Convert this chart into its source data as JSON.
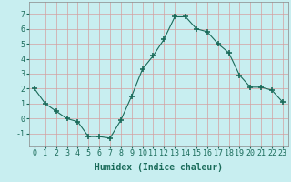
{
  "x": [
    0,
    1,
    2,
    3,
    4,
    5,
    6,
    7,
    8,
    9,
    10,
    11,
    12,
    13,
    14,
    15,
    16,
    17,
    18,
    19,
    20,
    21,
    22,
    23
  ],
  "y": [
    2,
    1,
    0.5,
    0,
    -0.2,
    -1.2,
    -1.2,
    -1.3,
    -0.1,
    1.5,
    3.3,
    4.2,
    5.3,
    6.8,
    6.8,
    6.0,
    5.8,
    5.0,
    4.4,
    2.9,
    2.1,
    2.1,
    1.9,
    1.1
  ],
  "line_color": "#1a6b5a",
  "marker": "+",
  "marker_size": 4,
  "bg_color": "#c8eef0",
  "grid_color": "#d4a0a0",
  "xlabel": "Humidex (Indice chaleur)",
  "xlim": [
    -0.5,
    23.5
  ],
  "ylim": [
    -1.8,
    7.8
  ],
  "yticks": [
    -1,
    0,
    1,
    2,
    3,
    4,
    5,
    6,
    7
  ],
  "xticks": [
    0,
    1,
    2,
    3,
    4,
    5,
    6,
    7,
    8,
    9,
    10,
    11,
    12,
    13,
    14,
    15,
    16,
    17,
    18,
    19,
    20,
    21,
    22,
    23
  ],
  "label_fontsize": 7,
  "tick_fontsize": 6
}
